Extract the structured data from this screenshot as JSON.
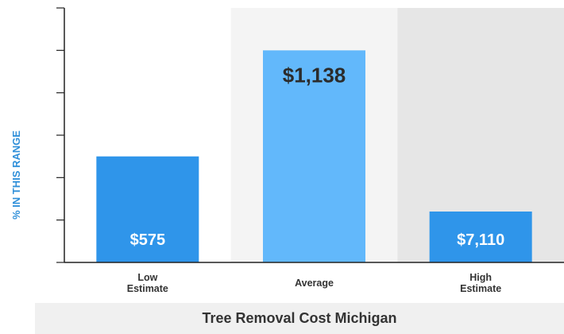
{
  "chart_data": {
    "type": "bar",
    "title": "Tree Removal Cost Michigan",
    "xlabel": "",
    "ylabel": "% IN THIS RANGE",
    "categories": [
      {
        "line1": "Low",
        "line2": "Estimate"
      },
      {
        "line1": "Average",
        "line2": ""
      },
      {
        "line1": "High",
        "line2": "Estimate"
      }
    ],
    "values": [
      25,
      50,
      12
    ],
    "value_labels": [
      "$575",
      "$1,138",
      "$7,110"
    ],
    "ylim": [
      0,
      60
    ],
    "yticks": [
      0,
      10,
      20,
      30,
      40,
      50,
      60
    ],
    "grid": false,
    "colors": {
      "bar_low": "#2f95ea",
      "bar_average": "#62b8fb",
      "bar_high": "#2f95ea",
      "label_on_dark": "#ffffff",
      "label_on_light": "#2b2b2b",
      "axis": "#222222",
      "ylabel": "#2f8fd9",
      "band_1": "#ffffff",
      "band_2": "#f4f4f4",
      "band_3": "#e6e6e6"
    }
  }
}
